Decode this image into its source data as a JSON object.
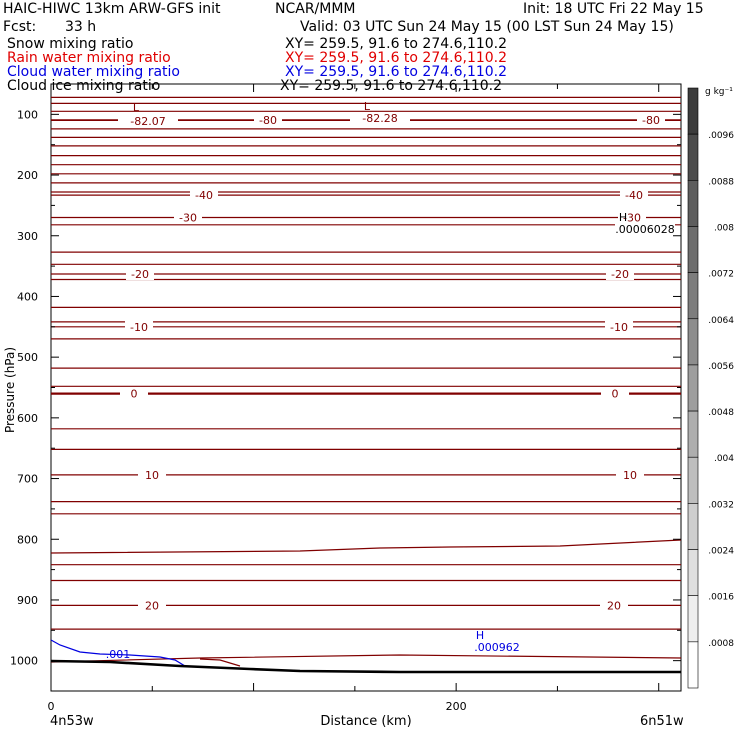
{
  "header": {
    "title": "HAIC-HIWC 13km ARW-GFS init",
    "org": "NCAR/MMM",
    "init": "Init: 18 UTC Fri 22 May 15",
    "fcst_label": "Fcst:",
    "fcst_value": "33 h",
    "valid": "Valid: 03 UTC Sun 24 May 15 (00 LST Sun 24 May 15)",
    "fields": [
      {
        "name": "Snow mixing ratio",
        "xy": "XY= 259.5, 91.6 to 274.6,110.2",
        "color": "#000000"
      },
      {
        "name": "Rain water mixing ratio",
        "xy": "XY= 259.5, 91.6 to 274.6,110.2",
        "color": "#e00000"
      },
      {
        "name": "Cloud water mixing ratio",
        "xy": "XY= 259.5, 91.6 to 274.6,110.2",
        "color": "#0000e0"
      },
      {
        "name": "Cloud ice mixing ratio",
        "xy": "XY= 259.5, 91.6 to 274.6,110.2",
        "color": "#000000"
      }
    ]
  },
  "chart_data": {
    "type": "contour",
    "xlabel": "Distance (km)",
    "ylabel": "Pressure (hPa)",
    "xlim": [
      0,
      311
    ],
    "ylim": [
      1050,
      50
    ],
    "x_ticks": [
      0,
      200
    ],
    "y_ticks": [
      100,
      200,
      300,
      400,
      500,
      600,
      700,
      800,
      900,
      1000
    ],
    "x_endpoint_labels": [
      "4n53w",
      "6n51w"
    ],
    "temperature_contours": [
      {
        "value": -80,
        "label": "-80"
      },
      {
        "value": -40,
        "label": "-40"
      },
      {
        "value": -30,
        "label": "-30"
      },
      {
        "value": -20,
        "label": "-20"
      },
      {
        "value": -10,
        "label": "-10"
      },
      {
        "value": 0,
        "label": "0"
      },
      {
        "value": 10,
        "label": "10"
      },
      {
        "value": 20,
        "label": "20"
      }
    ],
    "extrema": [
      {
        "type": "L",
        "value": "-82.07",
        "color": "#800000"
      },
      {
        "type": "L",
        "value": "-82.28",
        "color": "#800000"
      },
      {
        "type": "H",
        "value": ".00006028",
        "color": "#000000"
      },
      {
        "type": "H",
        "value": ".000962",
        "color": "#0000e0"
      }
    ],
    "cloud_water_label": ".001",
    "colorbar": {
      "unit": "g kg⁻¹",
      "labels": [
        ".0096",
        ".0088",
        ".008",
        ".0072",
        ".0064",
        ".0056",
        ".0048",
        ".004",
        ".0032",
        ".0024",
        ".0016",
        ".0008"
      ]
    }
  }
}
